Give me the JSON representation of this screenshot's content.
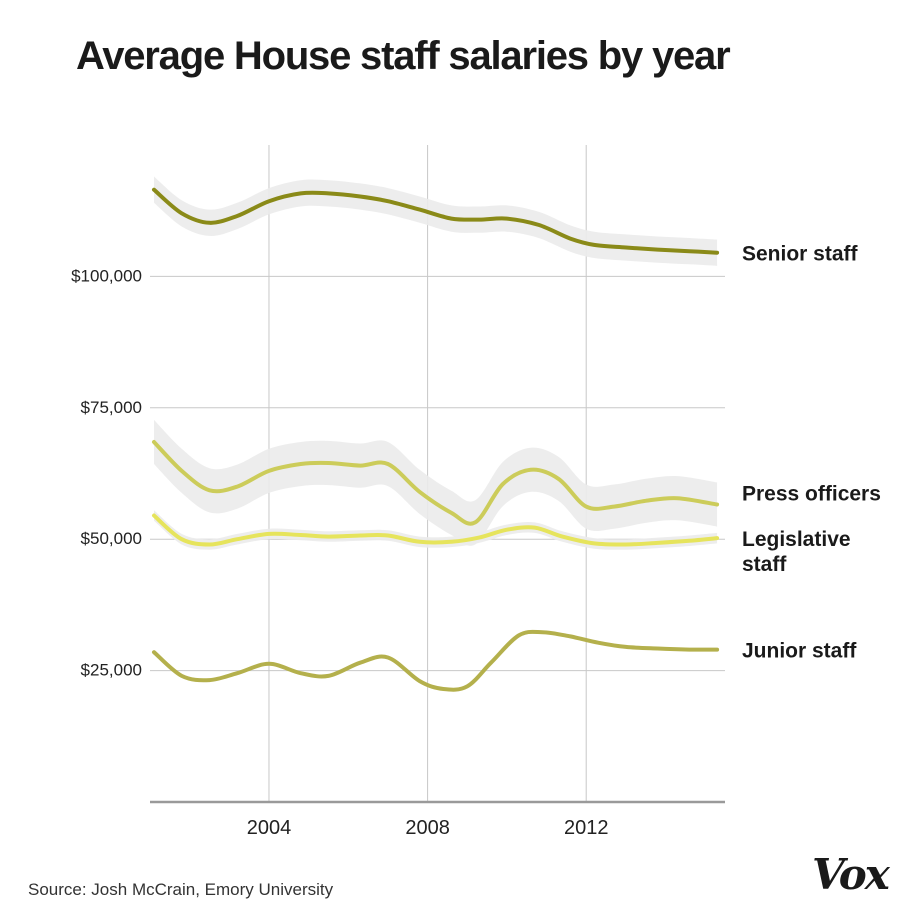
{
  "chart_data": {
    "type": "line",
    "title": "Average House staff salaries by year",
    "source": "Source: Josh McCrain, Emory University",
    "brand": "Vox",
    "xlabel": "",
    "ylabel": "",
    "xlim": [
      2001.0,
      2015.5
    ],
    "ylim": [
      0,
      125000
    ],
    "x_ticks": [
      {
        "value": 2004,
        "label": "2004"
      },
      {
        "value": 2008,
        "label": "2008"
      },
      {
        "value": 2012,
        "label": "2012"
      }
    ],
    "y_ticks": [
      {
        "value": 25000,
        "label": "$25,000"
      },
      {
        "value": 50000,
        "label": "$50,000"
      },
      {
        "value": 75000,
        "label": "$75,000"
      },
      {
        "value": 100000,
        "label": "$100,000"
      }
    ],
    "grid": true,
    "series": [
      {
        "name": "Senior staff",
        "label_lines": [
          "Senior staff"
        ],
        "color": "#8a8a18",
        "band_halfwidth": 2500,
        "x": [
          2001.1,
          2001.8,
          2002.5,
          2003.2,
          2004.0,
          2004.8,
          2005.5,
          2006.3,
          2007.0,
          2007.8,
          2008.6,
          2009.3,
          2010.0,
          2010.8,
          2011.6,
          2012.2,
          2013.0,
          2013.8,
          2014.6,
          2015.3
        ],
        "values": [
          116500,
          112000,
          110200,
          111500,
          114300,
          115800,
          115800,
          115200,
          114300,
          112700,
          111000,
          110800,
          111000,
          109800,
          107200,
          106000,
          105500,
          105100,
          104800,
          104500
        ]
      },
      {
        "name": "Press officers",
        "label_lines": [
          "Press officers"
        ],
        "color": "#cccc5a",
        "band_halfwidth": 4200,
        "x": [
          2001.1,
          2001.8,
          2002.5,
          2003.2,
          2004.0,
          2004.8,
          2005.5,
          2006.3,
          2007.0,
          2007.8,
          2008.6,
          2009.2,
          2009.9,
          2010.6,
          2011.3,
          2012.0,
          2012.7,
          2013.5,
          2014.3,
          2015.3
        ],
        "values": [
          68500,
          63000,
          59300,
          60000,
          63000,
          64300,
          64500,
          64000,
          64300,
          59000,
          55000,
          53200,
          60500,
          63200,
          61500,
          56200,
          56200,
          57300,
          57800,
          56600
        ]
      },
      {
        "name": "Legislative staff",
        "label_lines": [
          "Legislative",
          "staff"
        ],
        "color": "#e6e45c",
        "band_halfwidth": 1000,
        "x": [
          2001.1,
          2001.8,
          2002.5,
          2003.2,
          2004.0,
          2004.8,
          2005.5,
          2006.3,
          2007.0,
          2007.8,
          2008.6,
          2009.3,
          2010.0,
          2010.7,
          2011.4,
          2012.2,
          2013.0,
          2013.8,
          2014.6,
          2015.3
        ],
        "values": [
          54500,
          50000,
          49000,
          50000,
          51000,
          50800,
          50500,
          50700,
          50700,
          49500,
          49500,
          50300,
          51800,
          52200,
          50500,
          49200,
          49000,
          49300,
          49700,
          50200
        ]
      },
      {
        "name": "Junior staff",
        "label_lines": [
          "Junior staff"
        ],
        "color": "#b4b04c",
        "band_halfwidth": 0,
        "x": [
          2001.1,
          2001.8,
          2002.5,
          2003.2,
          2004.0,
          2004.8,
          2005.5,
          2006.3,
          2007.0,
          2007.8,
          2008.4,
          2009.0,
          2009.6,
          2010.3,
          2010.9,
          2011.6,
          2012.3,
          2013.0,
          2013.8,
          2014.6,
          2015.3
        ],
        "values": [
          28500,
          24000,
          23200,
          24500,
          26300,
          24500,
          24000,
          26500,
          27500,
          23000,
          21500,
          22000,
          26500,
          31700,
          32300,
          31500,
          30300,
          29500,
          29200,
          29000,
          29000
        ]
      }
    ]
  }
}
